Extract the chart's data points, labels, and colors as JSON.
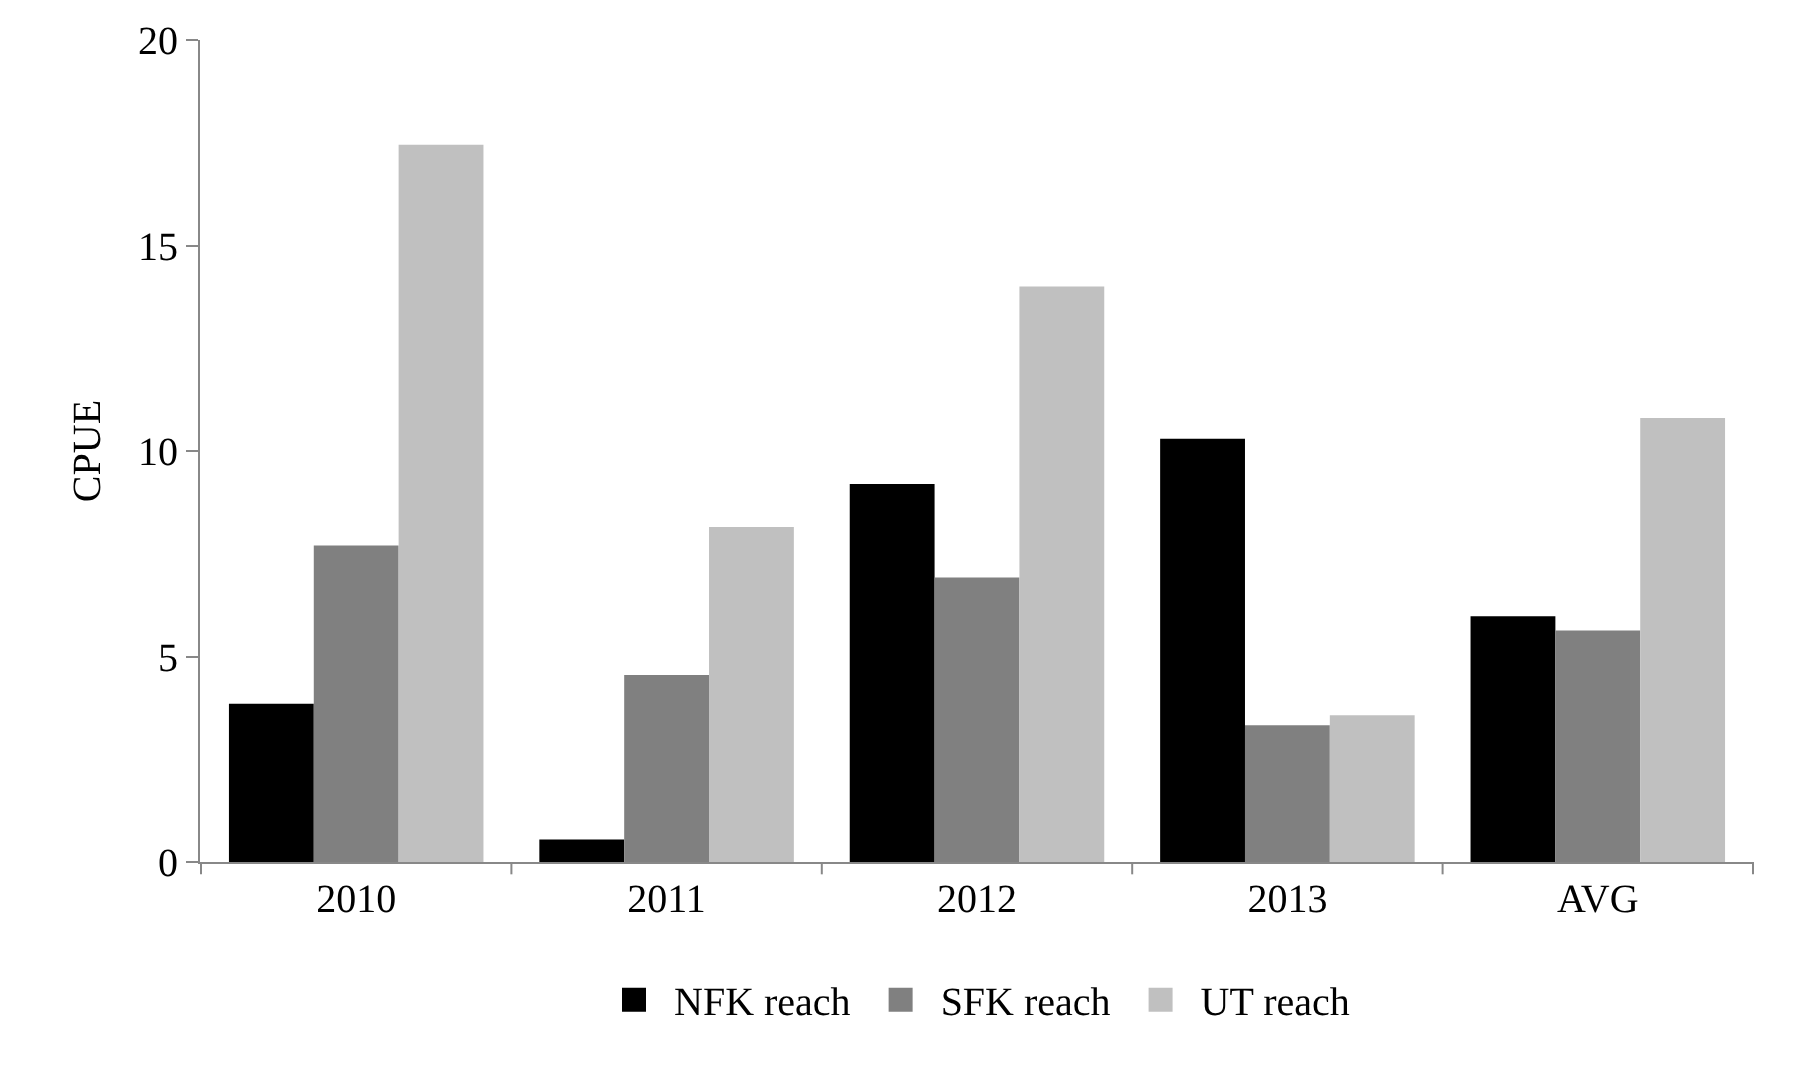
{
  "chart_data": {
    "type": "bar",
    "ylabel": "CPUE",
    "categories": [
      "2010",
      "2011",
      "2012",
      "2013",
      "AVG"
    ],
    "series": [
      {
        "name": "NFK reach",
        "color": "#000000",
        "values": [
          3.85,
          0.55,
          9.2,
          10.3,
          5.98
        ]
      },
      {
        "name": "SFK reach",
        "color": "#808080",
        "values": [
          7.7,
          4.55,
          6.92,
          3.33,
          5.63
        ]
      },
      {
        "name": "UT reach",
        "color": "#c0c0c0",
        "values": [
          17.45,
          8.15,
          14.0,
          3.57,
          10.8
        ]
      }
    ],
    "ylim": [
      0,
      20
    ],
    "yticks": [
      0,
      5,
      10,
      15,
      20
    ],
    "grid": false,
    "legend": "bottom"
  }
}
